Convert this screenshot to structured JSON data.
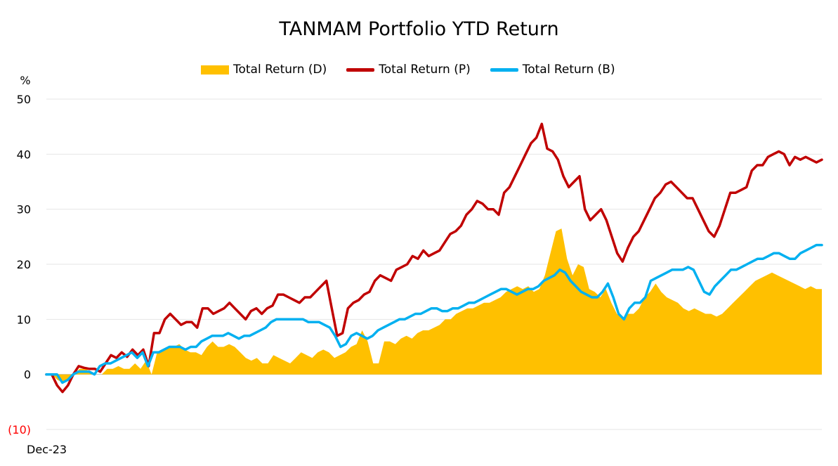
{
  "chart_data": {
    "type": "line",
    "title": "TANMAM Portfolio YTD Return",
    "ylabel": "%",
    "ylim": [
      -10,
      50
    ],
    "yticks": [
      "50",
      "40",
      "30",
      "20",
      "10",
      "0",
      "(10)"
    ],
    "negative_tick_color": "#ff0000",
    "x_label_first": "Dec-23",
    "grid": true,
    "legend_position": "top",
    "series": [
      {
        "name": "Total Return (D)",
        "style": "area",
        "color": "#ffc000",
        "values": [
          0,
          0,
          -1,
          -1.5,
          -1,
          0,
          1,
          1,
          0.5,
          0,
          0,
          1,
          1,
          1.5,
          1,
          1,
          2,
          1,
          2.5,
          0,
          4,
          4.5,
          5,
          5,
          5.5,
          4.5,
          4,
          4,
          3.5,
          5,
          6,
          5,
          5,
          5.5,
          5,
          4,
          3,
          2.5,
          3,
          2,
          2,
          3.5,
          3,
          2.5,
          2,
          3,
          4,
          3.5,
          3,
          4,
          4.5,
          4,
          3,
          3.5,
          4,
          5,
          5.5,
          8,
          6,
          2,
          2,
          6,
          6,
          5.5,
          6.5,
          7,
          6.5,
          7.5,
          8,
          8,
          8.5,
          9,
          10,
          10,
          11,
          11.5,
          12,
          12,
          12.5,
          13,
          13,
          13.5,
          14,
          15,
          15.5,
          16,
          15.5,
          16,
          15,
          15.5,
          18,
          22,
          26,
          26.5,
          21,
          18,
          20,
          19.5,
          15.5,
          15,
          14,
          15.5,
          13,
          11,
          10,
          11,
          11,
          12,
          14,
          15,
          16.5,
          15,
          14,
          13.5,
          13,
          12,
          11.5,
          12,
          11.5,
          11,
          11,
          10.5,
          11,
          12,
          13,
          14,
          15,
          16,
          17,
          17.5,
          18,
          18.5,
          18,
          17.5,
          17,
          16.5,
          16,
          15.5,
          16,
          15.5,
          15.5
        ]
      },
      {
        "name": "Total Return (P)",
        "style": "line",
        "color": "#c00000",
        "values": [
          0,
          0,
          -2,
          -3.2,
          -2,
          0,
          1.5,
          1.2,
          1,
          1,
          0.5,
          2,
          3.5,
          3,
          4,
          3.2,
          4.5,
          3.5,
          4.5,
          1.5,
          7.5,
          7.5,
          10,
          11,
          10,
          9,
          9.5,
          9.5,
          8.5,
          12,
          12,
          11,
          11.5,
          12,
          13,
          12,
          11,
          10,
          11.5,
          12,
          11,
          12,
          12.5,
          14.5,
          14.5,
          14,
          13.5,
          13,
          14,
          14,
          15,
          16,
          17,
          12,
          7,
          7.5,
          12,
          13,
          13.5,
          14.5,
          15,
          17,
          18,
          17.5,
          17,
          19,
          19.5,
          20,
          21.5,
          21,
          22.5,
          21.5,
          22,
          22.5,
          24,
          25.5,
          26,
          27,
          29,
          30,
          31.5,
          31,
          30,
          30,
          29,
          33,
          34,
          36,
          38,
          40,
          42,
          43,
          45.5,
          41,
          40.5,
          39,
          36,
          34,
          35,
          36,
          30,
          28,
          29,
          30,
          28,
          25,
          22,
          20.5,
          23,
          25,
          26,
          28,
          30,
          32,
          33,
          34.5,
          35,
          34,
          33,
          32,
          32,
          30,
          28,
          26,
          25,
          27,
          30,
          33,
          33,
          33.5,
          34,
          37,
          38,
          38,
          39.5,
          40,
          40.5,
          40,
          38,
          39.5,
          39,
          39.5,
          39,
          38.5,
          39
        ]
      },
      {
        "name": "Total Return (B)",
        "style": "line",
        "color": "#00b0f0",
        "values": [
          0,
          0,
          0,
          -1.5,
          -1,
          0,
          0.5,
          0.5,
          0.5,
          0,
          1.5,
          2,
          2,
          2.5,
          3,
          3.5,
          4,
          3,
          4,
          1.5,
          4,
          4,
          4.5,
          5,
          5,
          5,
          4.5,
          5,
          5,
          6,
          6.5,
          7,
          7,
          7,
          7.5,
          7,
          6.5,
          7,
          7,
          7.5,
          8,
          8.5,
          9.5,
          10,
          10,
          10,
          10,
          10,
          10,
          9.5,
          9.5,
          9.5,
          9,
          8.5,
          7,
          5,
          5.5,
          7,
          7.5,
          7,
          6.5,
          7,
          8,
          8.5,
          9,
          9.5,
          10,
          10,
          10.5,
          11,
          11,
          11.5,
          12,
          12,
          11.5,
          11.5,
          12,
          12,
          12.5,
          13,
          13,
          13.5,
          14,
          14.5,
          15,
          15.5,
          15.5,
          15,
          14.5,
          15,
          15.5,
          15.5,
          16,
          17,
          17.5,
          18,
          19,
          18.5,
          17,
          16,
          15,
          14.5,
          14,
          14,
          15,
          16.5,
          14,
          11,
          10,
          12,
          13,
          13,
          14,
          17,
          17.5,
          18,
          18.5,
          19,
          19,
          19,
          19.5,
          19,
          17,
          15,
          14.5,
          16,
          17,
          18,
          19,
          19,
          19.5,
          20,
          20.5,
          21,
          21,
          21.5,
          22,
          22,
          21.5,
          21,
          21,
          22,
          22.5,
          23,
          23.5,
          23.5
        ]
      }
    ]
  }
}
